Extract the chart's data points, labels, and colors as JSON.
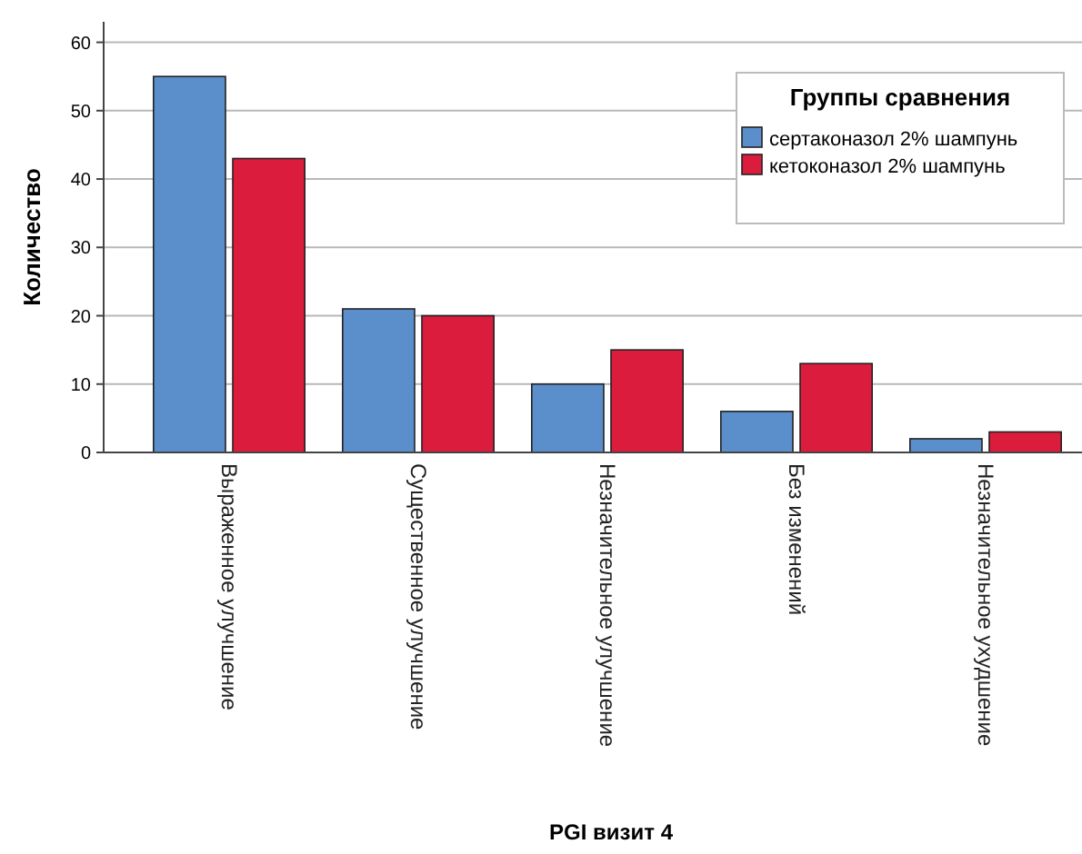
{
  "chart_data": {
    "type": "bar",
    "xlabel": "PGI визит 4",
    "ylabel": "Количество",
    "legend_title": "Группы сравнения",
    "legend": "top right",
    "grid": "y",
    "categories": [
      "Выраженное улучшение",
      "Существенное улучшение",
      "Незначительное улучшение",
      "Без изменений",
      "Незначительное ухудшение"
    ],
    "series": [
      {
        "name": "сертаконазол 2% шампунь",
        "color": "#5b8fcb",
        "values": [
          55,
          21,
          10,
          6,
          2
        ]
      },
      {
        "name": "кетоконазол 2% шампунь",
        "color": "#dc1c3c",
        "values": [
          43,
          20,
          15,
          13,
          3
        ]
      }
    ],
    "ylim": [
      0,
      63
    ],
    "yticks": [
      0,
      10,
      20,
      30,
      40,
      50,
      60
    ]
  }
}
